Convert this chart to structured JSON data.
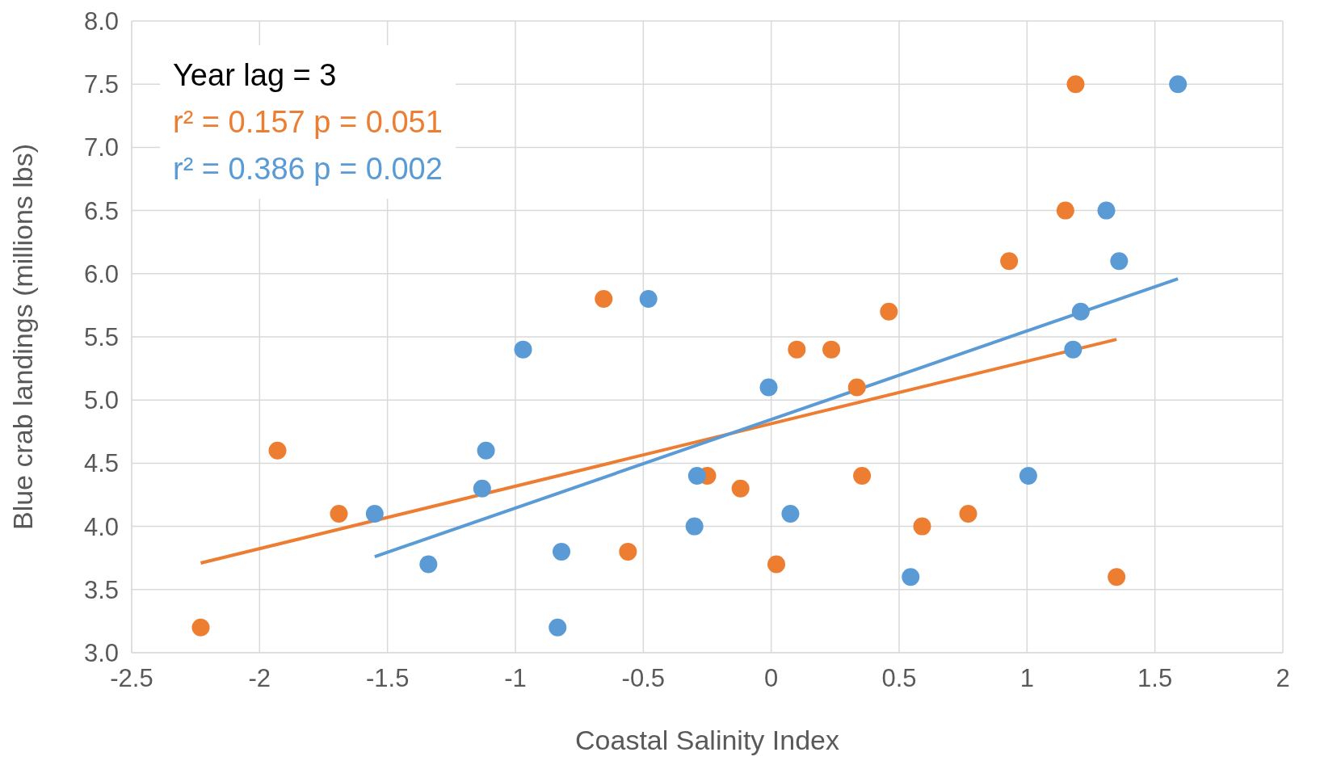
{
  "chart_data": {
    "type": "scatter",
    "xlabel": "Coastal Salinity Index",
    "ylabel": "Blue crab landings (millions lbs)",
    "annotations": [
      "Year lag = 3",
      "r² = 0.157 p = 0.051",
      "r² = 0.386 p = 0.002"
    ],
    "series": [
      {
        "marker": "circle",
        "color": "#ed7d31",
        "x": [
          -2.23,
          -1.93,
          -1.69,
          -0.655,
          -0.56,
          -0.25,
          -0.12,
          0.02,
          0.1,
          0.235,
          0.335,
          0.355,
          0.46,
          0.59,
          0.77,
          0.93,
          1.15,
          1.19,
          1.35
        ],
        "values": [
          3.2,
          4.6,
          4.1,
          5.8,
          3.8,
          4.4,
          4.3,
          3.7,
          5.4,
          5.4,
          5.1,
          4.4,
          5.7,
          4.0,
          4.1,
          6.1,
          6.5,
          7.5,
          3.6
        ]
      },
      {
        "marker": "circle",
        "color": "#5b9bd5",
        "x": [
          -1.55,
          -1.34,
          -1.13,
          -1.115,
          -0.97,
          -0.835,
          -0.82,
          -0.48,
          -0.3,
          -0.29,
          -0.01,
          0.075,
          0.545,
          1.005,
          1.18,
          1.21,
          1.31,
          1.36,
          1.59
        ],
        "values": [
          4.1,
          3.7,
          4.3,
          4.6,
          5.4,
          3.2,
          3.8,
          5.8,
          4.0,
          4.4,
          5.1,
          4.1,
          3.6,
          4.4,
          5.4,
          5.7,
          6.5,
          6.1,
          7.5
        ]
      },
      {
        "type": "line",
        "color": "#ed7d31",
        "x": [
          -2.23,
          1.35
        ],
        "values": [
          3.71,
          5.48
        ]
      },
      {
        "type": "line",
        "color": "#5b9bd5",
        "x": [
          -1.55,
          1.59
        ],
        "values": [
          3.76,
          5.96
        ]
      }
    ],
    "xlim": [
      -2.5,
      2
    ],
    "xticks": [
      -2.5,
      -2,
      -1.5,
      -1,
      -0.5,
      0,
      0.5,
      1,
      1.5,
      2
    ],
    "ylim": [
      3,
      8
    ],
    "yticks": [
      {
        "value": 3,
        "label": "3.0"
      },
      {
        "value": 3.5,
        "label": "3.5"
      },
      {
        "value": 4,
        "label": "4.0"
      },
      {
        "value": 4.5,
        "label": "4.5"
      },
      {
        "value": 5,
        "label": "5.0"
      },
      {
        "value": 5.5,
        "label": "5.5"
      },
      {
        "value": 6,
        "label": "6.0"
      },
      {
        "value": 6.5,
        "label": "6.5"
      },
      {
        "value": 7,
        "label": "7.0"
      },
      {
        "value": 7.5,
        "label": "7.5"
      },
      {
        "value": 8,
        "label": "8.0"
      }
    ],
    "grid": true,
    "legend": false,
    "line_style": "solid"
  }
}
